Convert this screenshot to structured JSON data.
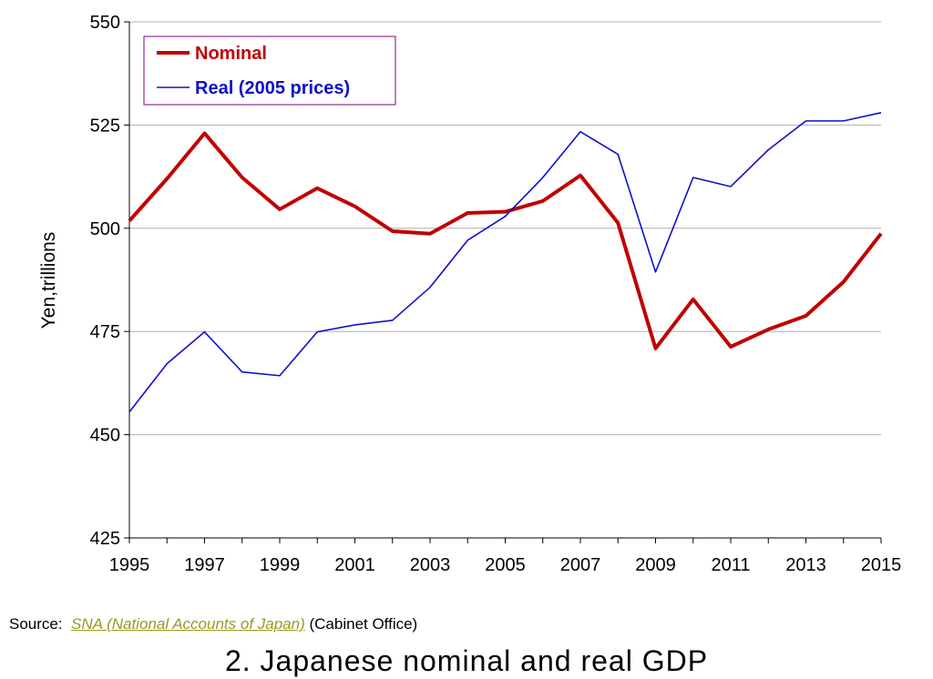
{
  "chart_data": {
    "type": "line",
    "title": "2. Japanese nominal and real GDP",
    "xlabel": "",
    "ylabel": "Yen,trillions",
    "xlim": [
      1995,
      2015
    ],
    "ylim": [
      425,
      550
    ],
    "x_ticks": [
      "1995",
      "1997",
      "1999",
      "2001",
      "2003",
      "2005",
      "2007",
      "2009",
      "2011",
      "2013",
      "2015"
    ],
    "y_ticks": [
      "425",
      "450",
      "475",
      "500",
      "525",
      "550"
    ],
    "grid": "horizontal",
    "legend_position": "top-left",
    "x": [
      1995,
      1996,
      1997,
      1998,
      1999,
      2000,
      2001,
      2002,
      2003,
      2004,
      2005,
      2006,
      2007,
      2008,
      2009,
      2010,
      2011,
      2012,
      2013,
      2014,
      2015
    ],
    "series": [
      {
        "name": "Nominal",
        "color": "#c00000",
        "values": [
          501.8,
          512,
          523,
          512.3,
          504.6,
          509.7,
          505.3,
          499.3,
          498.7,
          503.7,
          504,
          506.6,
          512.8,
          501.3,
          470.9,
          482.8,
          471.3,
          475.5,
          478.8,
          487,
          498.7
        ]
      },
      {
        "name": "Real (2005 prices)",
        "color": "#1010c8",
        "values": [
          455.5,
          467.2,
          474.9,
          465.2,
          464.3,
          474.9,
          476.6,
          477.7,
          485.7,
          497.1,
          502.9,
          512.3,
          523.4,
          517.9,
          489.4,
          512.3,
          510.1,
          519,
          526,
          526,
          528
        ]
      }
    ]
  },
  "source": {
    "label": "Source:",
    "link": "SNA (National Accounts of Japan)",
    "suffix": "(Cabinet Office)"
  },
  "colors": {
    "legend_border": "#800080",
    "link": "#9a9a1e"
  }
}
